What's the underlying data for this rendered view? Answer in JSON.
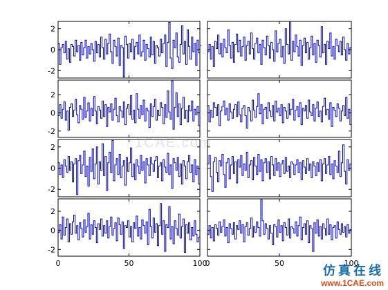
{
  "watermark": {
    "cn": "仿真在线",
    "url": "www.1CAE.com",
    "center": "1CAE.com"
  },
  "colors": {
    "series": "#0000b4",
    "frame": "#000000"
  },
  "chart_data": [
    {
      "type": "line",
      "step": true,
      "panel": "row-1-col-1",
      "xlim": [
        0,
        100
      ],
      "ylim": [
        -2.7,
        2.7
      ],
      "yticks": [
        "2",
        "0",
        "-2"
      ],
      "xticks": [],
      "grid": false,
      "series": [
        {
          "values": [
            0.6,
            -1.4,
            0.2,
            0.5,
            -0.3,
            0.8,
            -0.9,
            0.1,
            -1.2,
            0.5,
            0.3,
            -0.6,
            0.9,
            -0.2,
            0.4,
            -1.0,
            0.7,
            -0.5,
            0.2,
            0.9,
            -0.8,
            0.3,
            -0.4,
            0.6,
            0.0,
            -1.1,
            0.8,
            -0.3,
            0.5,
            -0.7,
            1.2,
            0.2,
            -0.9,
            1.0,
            -0.4,
            0.6,
            1.5,
            -0.2,
            -1.3,
            0.9,
            0.3,
            -0.6,
            1.1,
            -1.5,
            0.4,
            0.2,
            -2.6,
            1.3,
            0.5,
            -0.8,
            0.6,
            -0.2,
            1.0,
            -0.9,
            0.3,
            0.7,
            -0.4,
            1.4,
            -0.6,
            -0.2,
            0.9,
            -1.0,
            0.5,
            0.1,
            -0.7,
            1.2,
            -0.5,
            0.8,
            -1.3,
            0.4,
            0.2,
            -0.6,
            1.0,
            -0.3,
            0.6,
            1.4,
            -1.6,
            0.7,
            2.6,
            -0.8,
            -1.8,
            0.9,
            0.2,
            1.6,
            -0.7,
            -1.2,
            0.5,
            2.3,
            -0.4,
            0.8,
            -1.4,
            1.9,
            0.3,
            -0.9,
            1.2,
            -0.2,
            0.6,
            -1.5,
            0.9,
            -0.3,
            0.4
          ]
        }
      ]
    },
    {
      "type": "line",
      "step": true,
      "panel": "row-1-col-2",
      "xlim": [
        0,
        100
      ],
      "ylim": [
        -2.7,
        2.7
      ],
      "yticks": [],
      "xticks": [],
      "grid": false,
      "series": [
        {
          "values": [
            -0.2,
            0.5,
            -0.9,
            0.3,
            -1.6,
            0.8,
            0.1,
            1.4,
            -0.4,
            0.6,
            -0.7,
            1.0,
            0.2,
            -0.3,
            1.9,
            0.4,
            -0.8,
            0.7,
            -1.2,
            0.5,
            1.5,
            -0.2,
            0.9,
            -0.6,
            0.3,
            1.2,
            -1.0,
            0.4,
            0.8,
            -0.4,
            1.6,
            0.1,
            -0.9,
            0.6,
            1.1,
            -0.3,
            0.5,
            -1.4,
            0.9,
            0.2,
            -0.5,
            1.3,
            0.4,
            -0.8,
            0.7,
            0.0,
            -1.1,
            1.8,
            -0.2,
            0.6,
            1.0,
            -0.7,
            0.3,
            -1.3,
            2.0,
            0.5,
            -0.4,
            2.7,
            -1.0,
            0.8,
            -0.2,
            1.4,
            0.3,
            -0.6,
            0.9,
            -1.5,
            0.4,
            1.1,
            -0.3,
            0.7,
            -0.9,
            0.2,
            1.3,
            -0.5,
            0.6,
            -1.2,
            0.9,
            0.4,
            -0.7,
            2.2,
            -0.3,
            0.5,
            -1.4,
            0.8,
            0.1,
            1.6,
            -0.6,
            0.3,
            -0.9,
            1.0,
            0.4,
            -0.2,
            0.8,
            -0.5,
            1.2,
            0.0,
            -1.0,
            0.6,
            -0.4,
            0.2
          ]
        }
      ]
    },
    {
      "type": "line",
      "step": true,
      "panel": "row-2-col-1",
      "xlim": [
        0,
        100
      ],
      "ylim": [
        -2.7,
        3.6
      ],
      "yticks": [
        "2",
        "0",
        "-2"
      ],
      "xticks": [],
      "grid": false,
      "series": [
        {
          "values": [
            -0.3,
            0.9,
            -0.6,
            0.4,
            1.2,
            -0.8,
            0.2,
            -1.9,
            0.6,
            1.0,
            -0.4,
            0.3,
            1.5,
            -0.2,
            -1.1,
            0.8,
            0.4,
            -0.7,
            1.7,
            -0.5,
            0.2,
            1.1,
            -0.9,
            0.5,
            -0.3,
            1.8,
            0.2,
            -1.2,
            0.7,
            0.3,
            -0.6,
            1.3,
            -0.4,
            0.9,
            -1.5,
            0.6,
            0.1,
            1.0,
            -0.8,
            0.4,
            1.6,
            -0.3,
            -1.0,
            0.7,
            0.2,
            -0.5,
            1.2,
            -1.3,
            0.5,
            0.9,
            -0.2,
            1.9,
            -0.7,
            0.3,
            -1.1,
            2.1,
            0.4,
            -0.6,
            0.8,
            -0.2,
            1.4,
            -0.9,
            0.5,
            0.2,
            -1.6,
            1.0,
            -0.4,
            0.7,
            1.5,
            -0.8,
            0.3,
            -0.3,
            1.1,
            0.6,
            -1.2,
            0.9,
            -0.5,
            2.4,
            0.1,
            -0.7,
            3.5,
            -1.8,
            0.6,
            2.2,
            -0.4,
            1.0,
            -1.3,
            0.5,
            1.7,
            -0.6,
            0.3,
            -1.0,
            0.8,
            0.2,
            1.3,
            -0.9,
            0.4,
            -0.2,
            0.7,
            -1.4
          ]
        }
      ]
    },
    {
      "type": "line",
      "step": true,
      "panel": "row-2-col-2",
      "xlim": [
        0,
        100
      ],
      "ylim": [
        -2.7,
        3.6
      ],
      "yticks": [],
      "xticks": [],
      "grid": false,
      "series": [
        {
          "values": [
            0.8,
            -1.0,
            0.3,
            -0.5,
            1.1,
            0.6,
            -0.3,
            0.9,
            -1.4,
            0.2,
            0.7,
            1.3,
            -0.2,
            0.5,
            -0.8,
            1.0,
            0.1,
            -0.6,
            0.4,
            0.9,
            -0.4,
            1.2,
            -0.2,
            -1.0,
            0.5,
            0.8,
            -0.3,
            -1.7,
            0.6,
            0.2,
            -0.9,
            1.4,
            0.3,
            -0.5,
            0.7,
            2.1,
            -0.1,
            0.9,
            -1.2,
            0.4,
            0.6,
            -0.6,
            1.1,
            0.2,
            -0.4,
            0.8,
            -0.9,
            1.3,
            0.1,
            0.5,
            -0.3,
            0.9,
            -1.1,
            0.6,
            0.2,
            -0.6,
            1.0,
            -0.2,
            0.4,
            1.5,
            -0.8,
            0.3,
            0.7,
            -0.4,
            1.1,
            -1.3,
            0.5,
            0.2,
            0.8,
            -0.6,
            1.4,
            0.1,
            -0.3,
            0.9,
            -0.9,
            0.5,
            1.2,
            -0.4,
            0.2,
            -1.0,
            0.7,
            1.6,
            -0.2,
            0.4,
            -0.7,
            1.1,
            -1.5,
            0.6,
            0.3,
            -0.4,
            1.0,
            0.5,
            -0.9,
            0.2,
            0.8,
            -0.3,
            1.7,
            -0.6,
            0.4,
            -1.3
          ]
        }
      ]
    },
    {
      "type": "line",
      "step": true,
      "panel": "row-3-col-1",
      "xlim": [
        0,
        100
      ],
      "ylim": [
        -2.7,
        2.7
      ],
      "yticks": [
        "2",
        "0",
        "-2"
      ],
      "xticks": [],
      "grid": false,
      "series": [
        {
          "values": [
            0.5,
            -0.6,
            0.3,
            -0.9,
            0.8,
            0.2,
            -0.4,
            1.1,
            -0.2,
            0.6,
            -1.3,
            0.4,
            0.9,
            -2.5,
            0.7,
            1.2,
            -0.5,
            0.3,
            1.6,
            -0.8,
            0.2,
            -1.7,
            1.0,
            -0.3,
            1.8,
            -1.0,
            0.4,
            2.0,
            -1.5,
            0.6,
            -0.2,
            2.3,
            -0.7,
            1.1,
            -2.1,
            0.5,
            1.5,
            -0.4,
            2.6,
            -1.2,
            0.3,
            0.9,
            -0.6,
            1.3,
            -0.9,
            0.2,
            0.7,
            -1.6,
            1.0,
            -0.3,
            0.5,
            1.9,
            -0.8,
            0.4,
            -1.1,
            0.8,
            0.2,
            -0.5,
            1.2,
            -0.2,
            0.6,
            -1.4,
            0.9,
            0.3,
            -0.7,
            1.0,
            0.4,
            -0.3,
            0.7,
            1.1,
            -0.9,
            0.2,
            0.5,
            -1.2,
            0.8,
            0.1,
            -0.4,
            1.4,
            -0.6,
            0.3,
            -1.9,
            0.9,
            0.5,
            -0.2,
            1.0,
            -0.8,
            0.4,
            -1.5,
            0.7,
            0.2,
            -1.0,
            0.6,
            1.2,
            -0.4,
            0.3,
            -1.3,
            0.8,
            -0.6,
            0.2,
            -1.5
          ]
        }
      ]
    },
    {
      "type": "line",
      "step": true,
      "panel": "row-3-col-2",
      "xlim": [
        0,
        100
      ],
      "ylim": [
        -2.7,
        2.7
      ],
      "yticks": [],
      "xticks": [],
      "grid": false,
      "series": [
        {
          "values": [
            0.4,
            1.2,
            -0.8,
            -2.2,
            0.6,
            1.0,
            -0.4,
            -1.3,
            0.7,
            0.2,
            1.3,
            -0.6,
            -1.8,
            0.5,
            0.9,
            -1.0,
            0.3,
            1.1,
            -0.5,
            0.6,
            -1.4,
            0.8,
            0.1,
            1.2,
            -0.7,
            0.4,
            -0.2,
            1.5,
            -0.9,
            0.3,
            0.7,
            -1.1,
            1.0,
            0.2,
            -0.6,
            1.3,
            -0.3,
            0.8,
            -1.2,
            0.5,
            0.9,
            -0.4,
            0.6,
            -1.0,
            1.1,
            0.3,
            -0.7,
            0.9,
            -0.2,
            0.5,
            -0.8,
            0.4,
            0.7,
            -0.5,
            1.0,
            -0.3,
            0.2,
            -0.9,
            0.6,
            0.4,
            -0.6,
            0.3,
            0.8,
            -0.4,
            0.5,
            -1.1,
            0.7,
            0.1,
            -0.5,
            0.9,
            -0.2,
            0.4,
            -0.9,
            0.6,
            0.2,
            -0.7,
            0.5,
            -0.3,
            0.8,
            -1.2,
            0.4,
            0.9,
            -0.5,
            0.3,
            1.1,
            -0.6,
            0.4,
            -1.0,
            0.7,
            0.2,
            -0.4,
            1.6,
            -0.8,
            0.5,
            2.2,
            -0.3,
            -1.5,
            0.8,
            -0.2,
            0.4
          ]
        }
      ]
    },
    {
      "type": "line",
      "step": true,
      "panel": "row-4-col-1",
      "xlim": [
        0,
        100
      ],
      "ylim": [
        -2.7,
        3.3
      ],
      "yticks": [
        "2",
        "0",
        "-2"
      ],
      "xticks": [
        "0",
        "50",
        "100"
      ],
      "grid": false,
      "series": [
        {
          "values": [
            -0.2,
            0.6,
            -0.9,
            1.4,
            -0.5,
            0.3,
            1.2,
            -1.2,
            0.7,
            -0.4,
            0.9,
            1.6,
            -0.3,
            0.5,
            -1.0,
            0.8,
            0.2,
            -0.7,
            1.1,
            -0.2,
            0.4,
            1.8,
            -0.9,
            0.6,
            -0.4,
            1.0,
            0.3,
            -1.3,
            0.7,
            0.1,
            1.2,
            -0.6,
            0.5,
            -0.3,
            1.0,
            -0.8,
            0.4,
            1.4,
            -0.5,
            0.2,
            0.8,
            -1.1,
            1.3,
            0.6,
            -0.4,
            0.9,
            -1.9,
            0.5,
            0.3,
            1.0,
            -0.7,
            0.4,
            -1.2,
            0.8,
            0.2,
            1.5,
            -0.6,
            0.3,
            -0.9,
            1.1,
            0.5,
            -0.3,
            0.9,
            -1.5,
            2.2,
            0.4,
            -0.8,
            1.3,
            -0.2,
            0.7,
            -1.6,
            0.5,
            2.8,
            -0.4,
            1.0,
            -2.2,
            0.6,
            0.3,
            2.5,
            -0.9,
            0.4,
            -1.4,
            1.0,
            0.2,
            -0.5,
            1.7,
            -0.8,
            0.4,
            1.2,
            -2.3,
            0.6,
            -0.3,
            0.8,
            -1.0,
            0.3,
            -0.6,
            1.0,
            -0.4,
            -1.2,
            -0.7
          ]
        }
      ]
    },
    {
      "type": "line",
      "step": true,
      "panel": "row-4-col-2",
      "xlim": [
        0,
        100
      ],
      "ylim": [
        -2.7,
        3.3
      ],
      "yticks": [],
      "xticks": [
        "0",
        "50",
        "100"
      ],
      "grid": false,
      "series": [
        {
          "values": [
            -0.4,
            0.5,
            -0.8,
            0.3,
            -1.1,
            0.6,
            0.2,
            -0.5,
            0.9,
            -0.2,
            0.4,
            1.1,
            -0.6,
            0.3,
            -1.3,
            0.7,
            0.2,
            -0.4,
            0.8,
            -0.9,
            0.5,
            0.1,
            1.0,
            -0.3,
            0.6,
            -1.2,
            0.4,
            0.8,
            -0.5,
            0.2,
            1.3,
            -0.7,
            0.4,
            -0.2,
            0.9,
            0.3,
            -0.6,
            3.2,
            1.0,
            -0.4,
            0.7,
            0.2,
            -0.9,
            0.5,
            -0.3,
            -1.5,
            0.6,
            0.4,
            -0.7,
            1.1,
            -0.2,
            0.5,
            -1.1,
            0.8,
            0.3,
            -0.5,
            1.2,
            -0.8,
            0.4,
            0.2,
            -0.3,
            0.9,
            -0.6,
            0.5,
            1.4,
            -1.0,
            0.3,
            0.7,
            -0.4,
            1.0,
            -1.3,
            0.5,
            0.2,
            -2.2,
            0.8,
            -0.3,
            1.1,
            -0.6,
            0.4,
            -0.9,
            0.7,
            0.2,
            -0.5,
            1.2,
            -0.4,
            0.6,
            -1.0,
            0.3,
            0.5,
            -0.8,
            0.9,
            0.1,
            -0.4,
            0.7,
            -0.2,
            0.4,
            -0.7,
            0.6,
            -0.3,
            0.1
          ]
        }
      ]
    }
  ]
}
